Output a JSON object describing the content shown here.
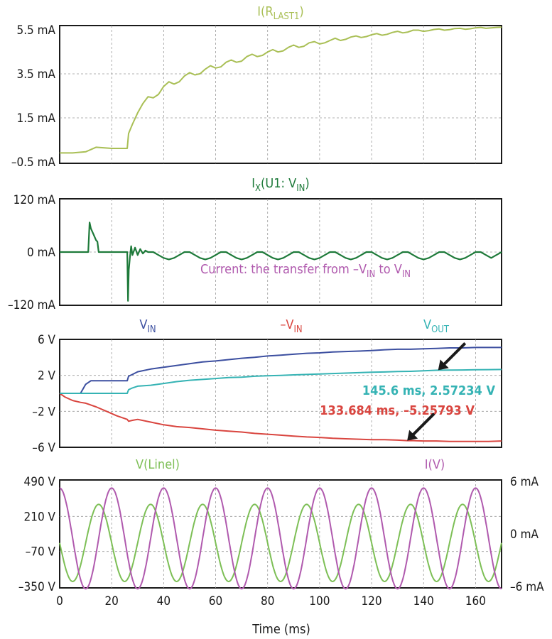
{
  "chart_data": {
    "type": "line",
    "xlabel": "Time (ms)",
    "x_ticks": [
      "0",
      "20",
      "40",
      "60",
      "80",
      "100",
      "120",
      "140",
      "160"
    ],
    "xlim": [
      0,
      170
    ],
    "grid": true,
    "panels": [
      {
        "id": "p1",
        "title": "I(R",
        "title_sub": "LAST1",
        "title_end": ")",
        "title_color": "#a9bf55",
        "ylabels": [
          "5.5 mA",
          "3.5 mA",
          "1.5 mA",
          "-0.5 mA"
        ],
        "ylim": [
          -0.5,
          5.5
        ],
        "series": [
          {
            "color": "#a9bf55",
            "x": [
              0,
              5,
              10,
              14,
              20,
              26,
              26.5,
              28,
              30,
              32,
              34,
              36,
              38,
              40,
              42,
              44,
              46,
              48,
              50,
              52,
              54,
              56,
              58,
              60,
              62,
              64,
              66,
              68,
              70,
              72,
              74,
              76,
              78,
              80,
              82,
              84,
              86,
              88,
              90,
              92,
              94,
              96,
              98,
              100,
              102,
              104,
              106,
              108,
              110,
              112,
              114,
              116,
              118,
              120,
              122,
              124,
              126,
              128,
              130,
              132,
              134,
              136,
              138,
              140,
              142,
              144,
              146,
              148,
              150,
              152,
              154,
              156,
              158,
              160,
              162,
              164,
              166,
              168,
              170
            ],
            "y": [
              -0.05,
              -0.05,
              0.0,
              0.2,
              0.15,
              0.15,
              0.8,
              1.2,
              1.7,
              2.1,
              2.4,
              2.35,
              2.5,
              2.85,
              3.05,
              2.95,
              3.05,
              3.3,
              3.45,
              3.35,
              3.4,
              3.6,
              3.75,
              3.65,
              3.7,
              3.9,
              4.0,
              3.9,
              3.95,
              4.15,
              4.25,
              4.15,
              4.2,
              4.35,
              4.45,
              4.35,
              4.4,
              4.55,
              4.65,
              4.55,
              4.6,
              4.75,
              4.8,
              4.7,
              4.75,
              4.85,
              4.95,
              4.85,
              4.9,
              5.0,
              5.05,
              4.98,
              5.02,
              5.1,
              5.15,
              5.08,
              5.12,
              5.2,
              5.25,
              5.18,
              5.22,
              5.3,
              5.3,
              5.25,
              5.28,
              5.33,
              5.35,
              5.3,
              5.32,
              5.37,
              5.38,
              5.34,
              5.36,
              5.4,
              5.42,
              5.38,
              5.4,
              5.42,
              5.43
            ]
          }
        ]
      },
      {
        "id": "p2",
        "title": "I",
        "title_sub": "X",
        "title_end": "(U1: V",
        "title_sub2": "IN",
        "title_end2": ")",
        "title_color": "#1e7a3a",
        "ylabels": [
          "120 mA",
          "0 mA",
          "-120 mA"
        ],
        "ylim": [
          -180,
          180
        ],
        "annotation": {
          "text": "Current: the transfer from –V",
          "sub": "IN",
          "text2": " to V",
          "sub2": "IN",
          "color": "#b05aae"
        },
        "series": [
          {
            "color": "#1e7a3a",
            "x": [
              0,
              11,
              11.5,
              12,
              12.5,
              13,
              13.5,
              14,
              14.5,
              15,
              16,
              20,
              24,
              26,
              26.3,
              26.6,
              27,
              27.5,
              28,
              29,
              30,
              31,
              32,
              33,
              34,
              36,
              38,
              40,
              42,
              44,
              46,
              48,
              50,
              52,
              54,
              56,
              58,
              60,
              62,
              64,
              66,
              68,
              70,
              72,
              74,
              76,
              78,
              80,
              82,
              84,
              86,
              88,
              90,
              92,
              94,
              96,
              98,
              100,
              102,
              104,
              106,
              108,
              110,
              112,
              114,
              116,
              118,
              120,
              122,
              124,
              126,
              128,
              130,
              132,
              134,
              136,
              138,
              140,
              142,
              144,
              146,
              148,
              150,
              152,
              154,
              156,
              158,
              160,
              162,
              164,
              166,
              168,
              170
            ],
            "y": [
              0,
              0,
              100,
              80,
              70,
              60,
              50,
              40,
              35,
              0,
              0,
              0,
              0,
              0,
              -165,
              -60,
              -20,
              20,
              -10,
              15,
              -10,
              10,
              -5,
              5,
              0,
              0,
              -10,
              -20,
              -25,
              -20,
              -10,
              0,
              0,
              -10,
              -20,
              -25,
              -20,
              -10,
              0,
              0,
              -10,
              -20,
              -25,
              -20,
              -10,
              0,
              0,
              -10,
              -20,
              -25,
              -20,
              -10,
              0,
              0,
              -10,
              -20,
              -25,
              -20,
              -10,
              0,
              0,
              -10,
              -20,
              -25,
              -20,
              -10,
              0,
              0,
              -10,
              -20,
              -25,
              -20,
              -10,
              0,
              0,
              -10,
              -20,
              -25,
              -20,
              -10,
              0,
              0,
              -10,
              -20,
              -25,
              -20,
              -10,
              0,
              0,
              -10,
              -20,
              -10,
              0
            ]
          }
        ]
      },
      {
        "id": "p3",
        "ylabels": [
          "6 V",
          "2 V",
          "-2 V",
          "-6 V"
        ],
        "ylim": [
          -6,
          6
        ],
        "legend": [
          {
            "text": "V",
            "sub": "IN",
            "color": "#3c4fa0"
          },
          {
            "text": "–V",
            "sub": "IN",
            "color": "#d9453f"
          },
          {
            "text": "V",
            "sub": "OUT",
            "color": "#35b3b4"
          }
        ],
        "cursor_labels": [
          {
            "text": "145.6 ms, 2.57234 V",
            "color": "#35b3b4",
            "x": 145.6,
            "y": 2.57234
          },
          {
            "text": "133.684 ms, –5.25793 V",
            "color": "#d9453f",
            "x": 133.684,
            "y": -5.25793
          }
        ],
        "series": [
          {
            "color": "#3c4fa0",
            "x": [
              0,
              5,
              8,
              10,
              12,
              14,
              16,
              18,
              20,
              22,
              24,
              26,
              26.5,
              28,
              30,
              35,
              40,
              45,
              50,
              55,
              60,
              65,
              70,
              75,
              80,
              85,
              90,
              95,
              100,
              105,
              110,
              115,
              120,
              125,
              130,
              135,
              140,
              145,
              150,
              155,
              160,
              165,
              170
            ],
            "y": [
              0,
              0,
              0,
              1.0,
              1.4,
              1.4,
              1.4,
              1.4,
              1.4,
              1.4,
              1.4,
              1.4,
              1.9,
              2.1,
              2.4,
              2.7,
              2.9,
              3.1,
              3.3,
              3.5,
              3.6,
              3.75,
              3.9,
              4.0,
              4.15,
              4.25,
              4.35,
              4.45,
              4.5,
              4.6,
              4.65,
              4.7,
              4.75,
              4.85,
              4.9,
              4.9,
              4.95,
              5.0,
              5.05,
              5.05,
              5.1,
              5.1,
              5.1
            ]
          },
          {
            "color": "#d9453f",
            "x": [
              0,
              2,
              5,
              8,
              10,
              14,
              18,
              22,
              26,
              26.5,
              28,
              30,
              35,
              40,
              45,
              50,
              55,
              60,
              65,
              70,
              75,
              80,
              85,
              90,
              95,
              100,
              105,
              110,
              115,
              120,
              125,
              130,
              133.684,
              135,
              140,
              145,
              150,
              155,
              160,
              165,
              170
            ],
            "y": [
              0,
              -0.4,
              -0.8,
              -1.0,
              -1.1,
              -1.5,
              -2.0,
              -2.5,
              -2.9,
              -3.1,
              -3.0,
              -2.9,
              -3.2,
              -3.5,
              -3.7,
              -3.8,
              -3.95,
              -4.1,
              -4.2,
              -4.3,
              -4.45,
              -4.55,
              -4.65,
              -4.75,
              -4.85,
              -4.9,
              -5.0,
              -5.05,
              -5.1,
              -5.15,
              -5.15,
              -5.2,
              -5.25793,
              -5.25,
              -5.3,
              -5.3,
              -5.35,
              -5.35,
              -5.35,
              -5.35,
              -5.3
            ]
          },
          {
            "color": "#35b3b4",
            "x": [
              0,
              5,
              10,
              15,
              20,
              24,
              26,
              26.5,
              28,
              30,
              35,
              40,
              45,
              50,
              55,
              60,
              65,
              70,
              75,
              80,
              85,
              90,
              95,
              100,
              105,
              110,
              115,
              120,
              125,
              130,
              135,
              140,
              145.6,
              150,
              155,
              160,
              165,
              170
            ],
            "y": [
              0,
              0,
              0,
              0,
              0,
              0,
              0,
              0.4,
              0.6,
              0.8,
              0.9,
              1.1,
              1.3,
              1.45,
              1.55,
              1.65,
              1.75,
              1.8,
              1.9,
              1.95,
              2.0,
              2.05,
              2.1,
              2.15,
              2.2,
              2.25,
              2.3,
              2.35,
              2.38,
              2.42,
              2.45,
              2.5,
              2.57234,
              2.58,
              2.6,
              2.62,
              2.64,
              2.65
            ]
          }
        ]
      },
      {
        "id": "p4",
        "ylabels": [
          "490 V",
          "210 V",
          "-70 V",
          "-350 V"
        ],
        "ylim": [
          -350,
          490
        ],
        "y2labels": [
          "6 mA",
          "0 mA",
          "-6 mA"
        ],
        "y2lim": [
          -6,
          6
        ],
        "legend": [
          {
            "text": "V(Linel)",
            "color": "#7dbf56"
          },
          {
            "text": "I(V)",
            "color": "#b05aae"
          }
        ],
        "series": [
          {
            "name": "V(Linel)",
            "color": "#7dbf56",
            "function": "sine",
            "amplitude": 300,
            "offset": 0,
            "period_ms": 20,
            "phase_deg": 180,
            "axis": "left"
          },
          {
            "name": "I(V)",
            "color": "#b05aae",
            "function": "sine",
            "amplitude": 5.6,
            "offset": -0.5,
            "period_ms": 20,
            "phase_deg": 90,
            "axis": "right"
          }
        ]
      }
    ]
  }
}
